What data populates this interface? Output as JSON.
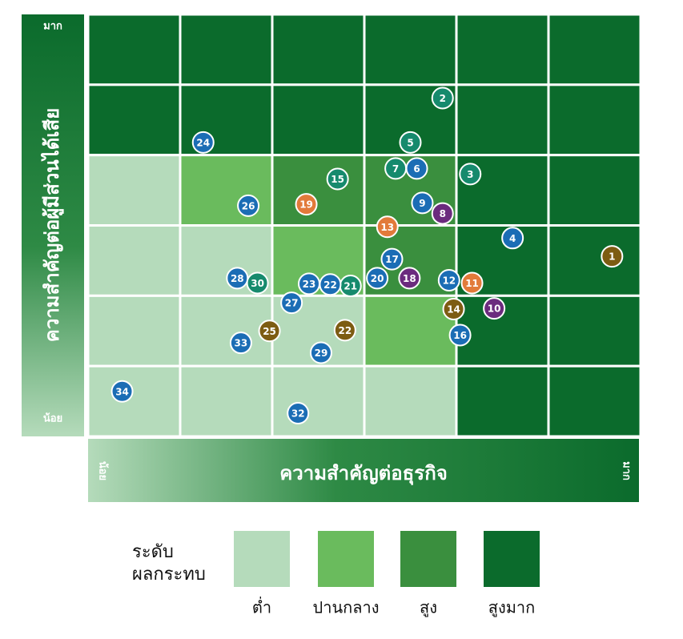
{
  "chart_data": {
    "type": "scatter",
    "ylabel": "ความสำคัญต่อผู้มีส่วนได้เสีย",
    "xlabel": "ความสำคัญต่อธุรกิจ",
    "xlim": [
      0,
      6
    ],
    "ylim": [
      0,
      6
    ],
    "xticks": [
      {
        "value": 0,
        "label": "น้อย"
      },
      {
        "value": 6,
        "label": "มาก"
      }
    ],
    "yticks": [
      {
        "value": 0,
        "label": "น้อย"
      },
      {
        "value": 6,
        "label": "มาก"
      }
    ],
    "cells": [
      [
        4,
        4,
        4,
        4,
        4,
        4
      ],
      [
        4,
        4,
        4,
        4,
        4,
        4
      ],
      [
        1,
        2,
        3,
        3,
        4,
        4
      ],
      [
        1,
        1,
        2,
        3,
        4,
        4
      ],
      [
        1,
        1,
        1,
        2,
        4,
        4
      ],
      [
        1,
        1,
        1,
        1,
        4,
        4
      ]
    ],
    "legend": {
      "title": [
        "ระดับ",
        "ผลกระทบ"
      ],
      "labels": [
        "ต่ำ",
        "ปานกลาง",
        "สูง",
        "สูงมาก"
      ],
      "colors": [
        "#b5dbbb",
        "#6abb5d",
        "#3a8f3e",
        "#0b6b2c"
      ]
    },
    "point_labels": [
      "1",
      "2",
      "3",
      "4",
      "5",
      "6",
      "7",
      "8",
      "9",
      "10",
      "11",
      "12",
      "13",
      "14",
      "15",
      "16",
      "17",
      "18",
      "19",
      "20",
      "21",
      "22",
      "23",
      "22",
      "24",
      "25",
      "26",
      "27",
      "28",
      "29",
      "30",
      "32",
      "33",
      "34"
    ],
    "x": [
      5.69,
      3.85,
      4.15,
      4.61,
      3.5,
      3.57,
      3.34,
      3.85,
      3.63,
      4.41,
      4.17,
      3.92,
      3.25,
      3.97,
      2.71,
      4.04,
      3.3,
      3.49,
      2.37,
      3.14,
      2.85,
      2.63,
      2.4,
      2.79,
      1.25,
      1.97,
      1.74,
      2.21,
      1.62,
      2.53,
      1.84,
      2.28,
      1.66,
      0.37
    ],
    "values": [
      2.56,
      4.81,
      3.73,
      2.82,
      4.18,
      3.81,
      3.81,
      3.17,
      3.32,
      1.82,
      2.18,
      2.22,
      2.98,
      1.81,
      3.66,
      1.44,
      2.52,
      2.25,
      3.3,
      2.25,
      2.14,
      2.16,
      2.17,
      1.51,
      4.18,
      1.5,
      3.28,
      1.9,
      2.25,
      1.19,
      2.18,
      0.33,
      1.33,
      0.64
    ],
    "point_colors": [
      "#7d5c12",
      "#168a6d",
      "#168a6d",
      "#1b6db5",
      "#168a6d",
      "#1b6db5",
      "#168a6d",
      "#6b2b7e",
      "#1b6db5",
      "#6b2b7e",
      "#e27a3a",
      "#1b6db5",
      "#e27a3a",
      "#7d5c12",
      "#168a6d",
      "#1b6db5",
      "#1b6db5",
      "#6b2b7e",
      "#e27a3a",
      "#1b6db5",
      "#168a6d",
      "#1b6db5",
      "#1b6db5",
      "#7d5c12",
      "#1b6db5",
      "#7d5c12",
      "#1b6db5",
      "#1b6db5",
      "#1b6db5",
      "#1b6db5",
      "#168a6d",
      "#1b6db5",
      "#1b6db5",
      "#1b6db5"
    ]
  }
}
